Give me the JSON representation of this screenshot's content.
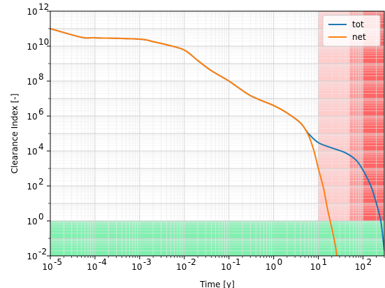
{
  "chart_data": {
    "type": "line",
    "xlabel": "Time [y]",
    "ylabel": "Clearance Index [-]",
    "xscale": "log",
    "yscale": "log",
    "xlim": [
      1e-05,
      300
    ],
    "ylim": [
      0.01,
      1000000000000
    ],
    "grid": true,
    "legend_position": "top-right",
    "x_tick_labels": [
      "10",
      "10",
      "10",
      "10",
      "10",
      "10",
      "10",
      "10"
    ],
    "x_tick_exponents": [
      "-5",
      "-4",
      "-3",
      "-2",
      "-1",
      "0",
      "1",
      "2"
    ],
    "y_tick_labels": [
      "10",
      "10",
      "10",
      "10",
      "10",
      "10",
      "10",
      "10"
    ],
    "y_tick_exponents": [
      "-2",
      "0",
      "2",
      "4",
      "6",
      "8",
      "10",
      "12"
    ],
    "regions": [
      {
        "axis": "x",
        "from": 10,
        "to": 50,
        "color": "#ffcccc"
      },
      {
        "axis": "x",
        "from": 50,
        "to": 100,
        "color": "#ff9999"
      },
      {
        "axis": "x",
        "from": 100,
        "to": 300,
        "color": "#ff6666"
      },
      {
        "axis": "y",
        "from": 0.01,
        "to": 1,
        "color": "#80f0b0"
      }
    ],
    "series": [
      {
        "name": "tot",
        "color": "#1f77b4",
        "points": [
          [
            1e-05,
            100000000000
          ],
          [
            5e-05,
            32000000000
          ],
          [
            0.0001,
            30000000000
          ],
          [
            0.001,
            25000000000
          ],
          [
            0.002,
            18000000000
          ],
          [
            0.004,
            12000000000
          ],
          [
            0.01,
            6000000000
          ],
          [
            0.02,
            1500000000
          ],
          [
            0.04,
            400000000
          ],
          [
            0.1,
            100000000
          ],
          [
            0.3,
            15000000
          ],
          [
            1,
            4000000
          ],
          [
            2,
            1500000
          ],
          [
            4,
            400000
          ],
          [
            6,
            100000
          ],
          [
            10,
            30000
          ],
          [
            20,
            15000
          ],
          [
            40,
            8000
          ],
          [
            70,
            3000
          ],
          [
            100,
            800
          ],
          [
            150,
            100
          ],
          [
            200,
            10
          ],
          [
            250,
            1
          ],
          [
            280,
            0.1
          ],
          [
            300,
            0.02
          ]
        ]
      },
      {
        "name": "net",
        "color": "#ff7f0e",
        "points": [
          [
            1e-05,
            100000000000
          ],
          [
            5e-05,
            32000000000
          ],
          [
            0.0001,
            30000000000
          ],
          [
            0.001,
            25000000000
          ],
          [
            0.002,
            18000000000
          ],
          [
            0.004,
            12000000000
          ],
          [
            0.01,
            6000000000
          ],
          [
            0.02,
            1500000000
          ],
          [
            0.04,
            400000000
          ],
          [
            0.1,
            100000000
          ],
          [
            0.3,
            15000000
          ],
          [
            1,
            4000000
          ],
          [
            2,
            1500000
          ],
          [
            4,
            400000
          ],
          [
            6,
            80000
          ],
          [
            8,
            10000
          ],
          [
            10,
            1000
          ],
          [
            13,
            80
          ],
          [
            16,
            5
          ],
          [
            20,
            0.4
          ],
          [
            24,
            0.04
          ],
          [
            26,
            0.01
          ]
        ]
      }
    ]
  }
}
